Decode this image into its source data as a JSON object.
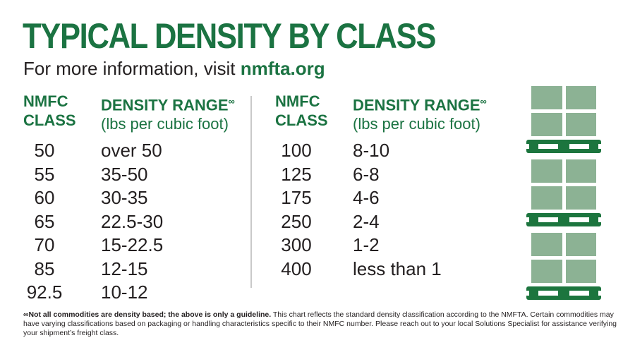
{
  "page": {
    "title": "TYPICAL DENSITY BY CLASS",
    "subtitle": {
      "prefix": "For more information, visit ",
      "link": "nmfta.org"
    }
  },
  "colors": {
    "brand_green": "#1b7342",
    "pallet_green": "#1c753e",
    "box_green": "#8cb294",
    "ink": "#231f20",
    "divider_gray": "#c9c9c9",
    "background": "#ffffff"
  },
  "table_headers": {
    "class_line1": "NMFC",
    "class_line2": "CLASS",
    "range_title": "DENSITY RANGE",
    "range_superscript": "∞",
    "range_unit": "(lbs per cubic foot)"
  },
  "tables": {
    "left": {
      "rows": [
        {
          "nmfc_class": "50",
          "density_range": "over 50"
        },
        {
          "nmfc_class": "55",
          "density_range": "35-50"
        },
        {
          "nmfc_class": "60",
          "density_range": "30-35"
        },
        {
          "nmfc_class": "65",
          "density_range": "22.5-30"
        },
        {
          "nmfc_class": "70",
          "density_range": "15-22.5"
        },
        {
          "nmfc_class": "85",
          "density_range": "12-15"
        },
        {
          "nmfc_class": "92.5",
          "density_range": "10-12"
        }
      ]
    },
    "right": {
      "rows": [
        {
          "nmfc_class": "100",
          "density_range": "8-10"
        },
        {
          "nmfc_class": "125",
          "density_range": "6-8"
        },
        {
          "nmfc_class": "175",
          "density_range": "4-6"
        },
        {
          "nmfc_class": "250",
          "density_range": "2-4"
        },
        {
          "nmfc_class": "300",
          "density_range": "1-2"
        },
        {
          "nmfc_class": "400",
          "density_range": "less than 1"
        }
      ]
    }
  },
  "footnote": {
    "bold": "∞Not all commodities are density based; the above is only a guideline.",
    "rest": " This chart reflects the standard density classification according to the NMFTA. Certain commodities may have varying classifications based on packaging or handling characteristics specific to their NMFC number. Please reach out to your local Solutions Specialist for assistance verifying your shipment’s freight class."
  },
  "chart_data": {
    "type": "table",
    "title": "TYPICAL DENSITY BY CLASS",
    "subtitle": "For more information, visit nmfta.org",
    "columns": [
      "NMFC CLASS",
      "DENSITY RANGE (lbs per cubic foot)"
    ],
    "rows": [
      [
        "50",
        "over 50"
      ],
      [
        "55",
        "35-50"
      ],
      [
        "60",
        "30-35"
      ],
      [
        "65",
        "22.5-30"
      ],
      [
        "70",
        "15-22.5"
      ],
      [
        "85",
        "12-15"
      ],
      [
        "92.5",
        "10-12"
      ],
      [
        "100",
        "8-10"
      ],
      [
        "125",
        "6-8"
      ],
      [
        "175",
        "4-6"
      ],
      [
        "250",
        "2-4"
      ],
      [
        "300",
        "1-2"
      ],
      [
        "400",
        "less than 1"
      ]
    ],
    "footnote": "∞Not all commodities are density based; the above is only a guideline. This chart reflects the standard density classification according to the NMFTA. Certain commodities may have varying classifications based on packaging or handling characteristics specific to their NMFC number. Please reach out to your local Solutions Specialist for assistance verifying your shipment’s freight class."
  }
}
